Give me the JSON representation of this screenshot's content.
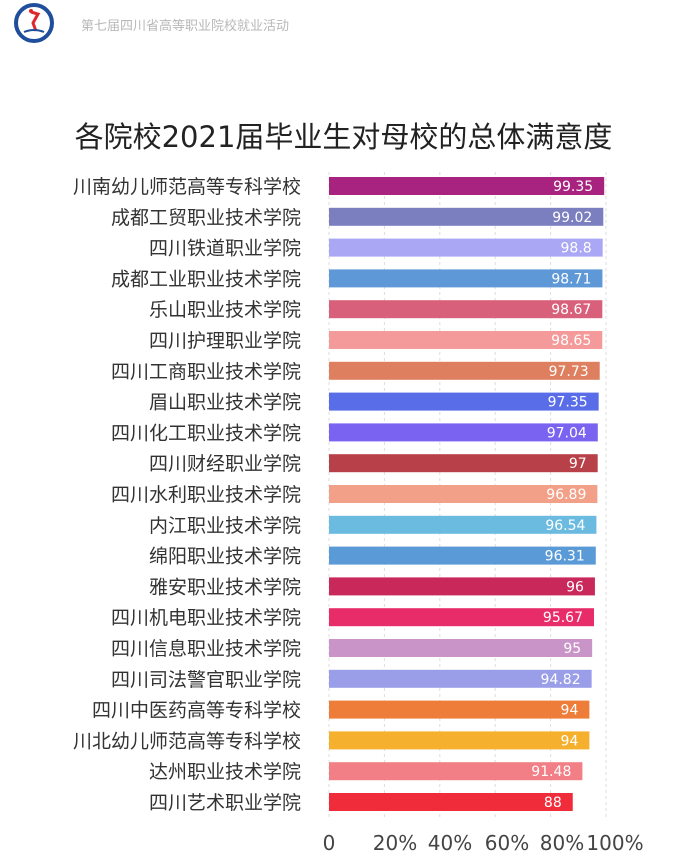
{
  "header": {
    "text": "第七届四川省高等职业院校就业活动",
    "logo_colors": {
      "ring": "#1f4e9c",
      "accent": "#e0262b"
    }
  },
  "chart_data": {
    "type": "bar",
    "orientation": "horizontal",
    "title": "各院校2021届毕业生对母校的总体满意度",
    "categories": [
      "川南幼儿师范高等专科学校",
      "成都工贸职业技术学院",
      "四川铁道职业学院",
      "成都工业职业技术学院",
      "乐山职业技术学院",
      "四川护理职业学院",
      "四川工商职业技术学院",
      "眉山职业技术学院",
      "四川化工职业技术学院",
      "四川财经职业学院",
      "四川水利职业技术学院",
      "内江职业技术学院",
      "绵阳职业技术学院",
      "雅安职业技术学院",
      "四川机电职业技术学院",
      "四川信息职业技术学院",
      "四川司法警官职业学院",
      "四川中医药高等专科学校",
      "川北幼儿师范高等专科学校",
      "达州职业技术学院",
      "四川艺术职业学院"
    ],
    "values": [
      99.35,
      99.02,
      98.8,
      98.71,
      98.67,
      98.65,
      97.73,
      97.35,
      97.04,
      97,
      96.89,
      96.54,
      96.31,
      96,
      95.67,
      95,
      94.82,
      94,
      94,
      91.48,
      88
    ],
    "value_labels": [
      "99.35",
      "99.02",
      "98.8",
      "98.71",
      "98.67",
      "98.65",
      "97.73",
      "97.35",
      "97.04",
      "97",
      "96.89",
      "96.54",
      "96.31",
      "96",
      "95.67",
      "95",
      "94.82",
      "94",
      "94",
      "91.48",
      "88"
    ],
    "colors": [
      "#a8237f",
      "#7b7fbf",
      "#aaa7f5",
      "#5e98d6",
      "#d9607a",
      "#f59a9a",
      "#de8060",
      "#5a6de8",
      "#7a63f0",
      "#b84048",
      "#f2a088",
      "#6bbbe0",
      "#5a9ad6",
      "#c8285a",
      "#e82c6a",
      "#c994c8",
      "#9a9ee8",
      "#ee7d3a",
      "#f5b02e",
      "#f27f86",
      "#f02c3a"
    ],
    "xlim": [
      0,
      100
    ],
    "xticks": [
      "0",
      "20%",
      "40%",
      "60%",
      "80%",
      "100%"
    ],
    "grid": true,
    "legend": "none"
  }
}
